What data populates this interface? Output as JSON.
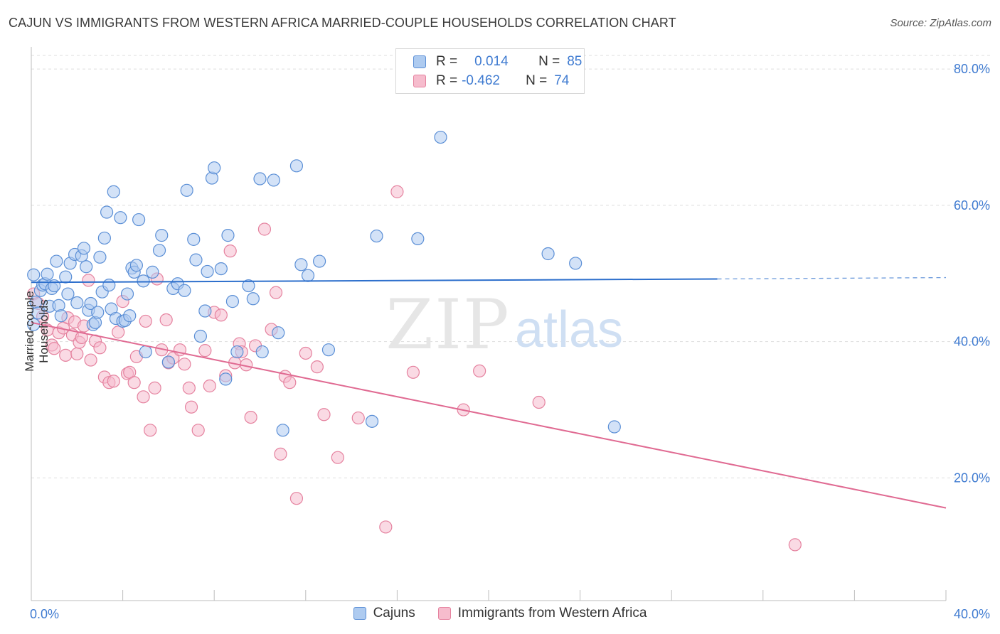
{
  "title": "CAJUN VS IMMIGRANTS FROM WESTERN AFRICA MARRIED-COUPLE HOUSEHOLDS CORRELATION CHART",
  "source": "Source: ZipAtlas.com",
  "watermark": {
    "zip": "ZIP",
    "atlas": "atlas"
  },
  "legend": {
    "rows": [
      {
        "r_label": "R =",
        "r_value": "0.014",
        "n_label": "N =",
        "n_value": "85"
      },
      {
        "r_label": "R =",
        "r_value": "-0.462",
        "n_label": "N =",
        "n_value": "74"
      }
    ]
  },
  "colors": {
    "cajun_fill": "#aecbf0",
    "cajun_stroke": "#5b8fd6",
    "cajun_line": "#2d6fcc",
    "imm_fill": "#f6bccd",
    "imm_stroke": "#e5829f",
    "imm_line": "#e06a92",
    "axis_text": "#3f7bd1",
    "grid": "#dddddd"
  },
  "chart_data": {
    "type": "scatter",
    "title": "CAJUN VS IMMIGRANTS FROM WESTERN AFRICA MARRIED-COUPLE HOUSEHOLDS CORRELATION CHART",
    "xlabel": "",
    "ylabel": "Married-couple Households",
    "xlim": [
      0,
      40
    ],
    "ylim": [
      2,
      82
    ],
    "x_tick_labels": [
      "0.0%",
      "40.0%"
    ],
    "y_ticks": [
      20,
      40,
      60,
      80
    ],
    "y_tick_labels": [
      "20.0%",
      "40.0%",
      "60.0%",
      "80.0%"
    ],
    "grid": true,
    "legend_position": "top-center",
    "series": [
      {
        "name": "Cajuns",
        "R": 0.014,
        "N": 85,
        "trend": {
          "x0": 0,
          "y0": 48.7,
          "x1": 30,
          "y1": 49.2,
          "dash_to_x": 40,
          "dash_to_y": 49.4
        },
        "points": [
          [
            0.1,
            42.5
          ],
          [
            0.1,
            49.8
          ],
          [
            0.2,
            45.8
          ],
          [
            0.3,
            44.2
          ],
          [
            0.4,
            47.5
          ],
          [
            0.5,
            48.3
          ],
          [
            0.6,
            48.5
          ],
          [
            0.7,
            49.9
          ],
          [
            0.8,
            45.2
          ],
          [
            0.9,
            47.8
          ],
          [
            1.0,
            48.2
          ],
          [
            1.1,
            51.8
          ],
          [
            1.2,
            45.3
          ],
          [
            1.3,
            43.8
          ],
          [
            1.5,
            49.5
          ],
          [
            1.6,
            47.0
          ],
          [
            1.7,
            51.5
          ],
          [
            1.9,
            52.8
          ],
          [
            2.0,
            45.7
          ],
          [
            2.2,
            52.6
          ],
          [
            2.3,
            53.7
          ],
          [
            2.4,
            51.0
          ],
          [
            2.5,
            44.6
          ],
          [
            2.6,
            45.6
          ],
          [
            2.7,
            42.5
          ],
          [
            2.8,
            42.8
          ],
          [
            2.9,
            44.3
          ],
          [
            3.0,
            52.4
          ],
          [
            3.1,
            47.3
          ],
          [
            3.2,
            55.2
          ],
          [
            3.3,
            59.0
          ],
          [
            3.4,
            48.3
          ],
          [
            3.5,
            44.8
          ],
          [
            3.6,
            62.0
          ],
          [
            3.7,
            43.4
          ],
          [
            3.9,
            58.2
          ],
          [
            4.0,
            43.0
          ],
          [
            4.1,
            43.1
          ],
          [
            4.2,
            47.0
          ],
          [
            4.3,
            43.8
          ],
          [
            4.4,
            50.8
          ],
          [
            4.5,
            50.2
          ],
          [
            4.6,
            51.2
          ],
          [
            4.7,
            57.9
          ],
          [
            4.9,
            48.9
          ],
          [
            5.0,
            38.5
          ],
          [
            5.3,
            50.2
          ],
          [
            5.6,
            53.4
          ],
          [
            5.7,
            55.6
          ],
          [
            6.0,
            37.0
          ],
          [
            6.2,
            47.8
          ],
          [
            6.4,
            48.5
          ],
          [
            6.7,
            47.5
          ],
          [
            6.8,
            62.2
          ],
          [
            7.1,
            55.0
          ],
          [
            7.2,
            52.0
          ],
          [
            7.4,
            40.8
          ],
          [
            7.6,
            44.5
          ],
          [
            7.7,
            50.3
          ],
          [
            7.9,
            64.0
          ],
          [
            8.0,
            65.5
          ],
          [
            8.3,
            50.7
          ],
          [
            8.5,
            34.5
          ],
          [
            8.6,
            55.6
          ],
          [
            8.8,
            45.9
          ],
          [
            9.0,
            38.5
          ],
          [
            9.5,
            48.2
          ],
          [
            9.7,
            46.3
          ],
          [
            10.0,
            63.9
          ],
          [
            10.1,
            38.5
          ],
          [
            10.6,
            63.7
          ],
          [
            10.8,
            41.3
          ],
          [
            11.6,
            65.8
          ],
          [
            11.8,
            51.3
          ],
          [
            12.1,
            49.7
          ],
          [
            12.6,
            51.8
          ],
          [
            11.0,
            27.0
          ],
          [
            13.0,
            38.8
          ],
          [
            14.9,
            28.3
          ],
          [
            15.1,
            55.5
          ],
          [
            16.9,
            55.1
          ],
          [
            17.9,
            70.0
          ],
          [
            22.6,
            52.9
          ],
          [
            23.8,
            51.5
          ],
          [
            25.5,
            27.5
          ]
        ]
      },
      {
        "name": "Immigrants from Western Africa",
        "R": -0.462,
        "N": 74,
        "trend": {
          "x0": 0,
          "y0": 42.8,
          "x1": 40,
          "y1": 15.6
        },
        "points": [
          [
            0.1,
            47.0
          ],
          [
            0.3,
            45.6
          ],
          [
            0.5,
            43.7
          ],
          [
            0.7,
            41.7
          ],
          [
            0.9,
            39.5
          ],
          [
            1.0,
            39.0
          ],
          [
            1.2,
            41.3
          ],
          [
            1.4,
            42.0
          ],
          [
            1.5,
            38.0
          ],
          [
            1.6,
            43.5
          ],
          [
            1.8,
            41.0
          ],
          [
            1.9,
            42.9
          ],
          [
            2.0,
            38.2
          ],
          [
            2.1,
            39.9
          ],
          [
            2.2,
            40.6
          ],
          [
            2.3,
            42.3
          ],
          [
            2.5,
            49.0
          ],
          [
            2.6,
            37.3
          ],
          [
            2.8,
            40.1
          ],
          [
            3.0,
            39.1
          ],
          [
            3.2,
            34.8
          ],
          [
            3.4,
            34.0
          ],
          [
            3.6,
            34.2
          ],
          [
            3.8,
            41.4
          ],
          [
            4.0,
            45.9
          ],
          [
            4.2,
            35.3
          ],
          [
            4.3,
            35.5
          ],
          [
            4.5,
            34.0
          ],
          [
            4.6,
            37.8
          ],
          [
            4.9,
            31.9
          ],
          [
            5.0,
            43.0
          ],
          [
            5.2,
            27.0
          ],
          [
            5.4,
            33.2
          ],
          [
            5.5,
            49.2
          ],
          [
            5.7,
            38.8
          ],
          [
            5.9,
            43.2
          ],
          [
            6.0,
            36.9
          ],
          [
            6.2,
            37.6
          ],
          [
            6.5,
            38.8
          ],
          [
            6.7,
            36.7
          ],
          [
            6.9,
            33.2
          ],
          [
            7.0,
            30.4
          ],
          [
            7.3,
            27.0
          ],
          [
            7.6,
            38.7
          ],
          [
            7.8,
            33.5
          ],
          [
            8.0,
            44.3
          ],
          [
            8.3,
            43.9
          ],
          [
            8.5,
            35.0
          ],
          [
            8.7,
            53.3
          ],
          [
            8.9,
            36.9
          ],
          [
            9.1,
            39.7
          ],
          [
            9.2,
            38.5
          ],
          [
            9.4,
            36.6
          ],
          [
            9.6,
            28.9
          ],
          [
            9.8,
            39.4
          ],
          [
            10.2,
            56.5
          ],
          [
            10.5,
            41.8
          ],
          [
            10.7,
            47.2
          ],
          [
            10.9,
            23.5
          ],
          [
            11.1,
            34.9
          ],
          [
            11.3,
            34.0
          ],
          [
            11.6,
            17.0
          ],
          [
            12.0,
            38.3
          ],
          [
            12.5,
            36.3
          ],
          [
            12.8,
            29.3
          ],
          [
            13.4,
            23.0
          ],
          [
            14.3,
            28.8
          ],
          [
            15.5,
            12.8
          ],
          [
            16.0,
            62.0
          ],
          [
            16.7,
            35.5
          ],
          [
            18.9,
            30.0
          ],
          [
            19.6,
            35.7
          ],
          [
            22.2,
            31.1
          ],
          [
            33.4,
            10.2
          ]
        ]
      }
    ]
  }
}
